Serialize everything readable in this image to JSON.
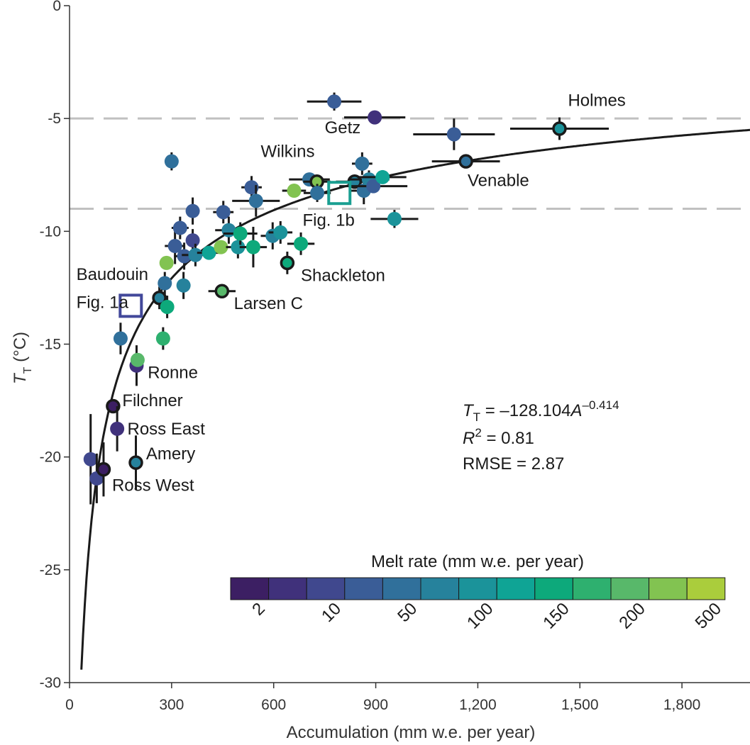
{
  "chart_data": {
    "type": "scatter",
    "xlabel": "Accumulation (mm w.e. per year)",
    "ylabel_main": "T",
    "ylabel_sub": "T",
    "ylabel_unit": " (°C)",
    "xlim": [
      0,
      2000
    ],
    "ylim": [
      -30,
      0
    ],
    "xticks": [
      0,
      300,
      600,
      900,
      1200,
      1500,
      1800
    ],
    "xtick_labels": [
      "0",
      "300",
      "600",
      "900",
      "1,200",
      "1,500",
      "1,800"
    ],
    "yticks": [
      0,
      -5,
      -10,
      -15,
      -20,
      -25,
      -30
    ],
    "ytick_labels": [
      "0",
      "-5",
      "-10",
      "-15",
      "-20",
      "-25",
      "-30"
    ],
    "reference_lines_y": [
      -5,
      -9
    ],
    "fit": {
      "coefficient": -128.104,
      "exponent": -0.414,
      "equation_parts": {
        "T": "T",
        "sub": "T",
        "mid": " = –128.104",
        "A": "A",
        "sup": "–0.414"
      },
      "r2_label": "R",
      "r2_sup": "2",
      "r2_value": " = 0.81",
      "rmse": "RMSE = 2.87"
    },
    "colorbar": {
      "title": "Melt rate (mm w.e. per year)",
      "colors": [
        "#3c1f63",
        "#40317b",
        "#40488e",
        "#3a5d97",
        "#30709b",
        "#26829c",
        "#1b939a",
        "#0fa495",
        "#0da97b",
        "#2eb06f",
        "#58b86a",
        "#82c351",
        "#aacd3c"
      ],
      "labels": [
        "2",
        "10",
        "50",
        "100",
        "150",
        "200",
        "500"
      ]
    },
    "points": [
      {
        "x": 62,
        "y": -20.1,
        "c": 2,
        "ex": 0,
        "ey": 2
      },
      {
        "x": 80,
        "y": -20.95,
        "c": 2,
        "ex": 0,
        "ey": 1.1
      },
      {
        "x": 100,
        "y": -20.55,
        "c": 0,
        "ex": 0,
        "ey": 1.2,
        "ring": true
      },
      {
        "x": 128,
        "y": -17.75,
        "c": 0,
        "ex": 0,
        "ey": 0.3,
        "ring": true
      },
      {
        "x": 140,
        "y": -18.75,
        "c": 1,
        "ex": 0,
        "ey": 1
      },
      {
        "x": 150,
        "y": -14.75,
        "c": 4,
        "ex": 0,
        "ey": 0.7
      },
      {
        "x": 195,
        "y": -20.25,
        "c": 5,
        "ex": 0,
        "ey": 1.2,
        "ring": true
      },
      {
        "x": 197,
        "y": -15.95,
        "c": 1,
        "ex": 0,
        "ey": 0.9
      },
      {
        "x": 200,
        "y": -15.7,
        "c": 10,
        "ex": 0,
        "ey": 0
      },
      {
        "x": 264,
        "y": -12.95,
        "c": 5,
        "ex": 0,
        "ey": 0.5,
        "ring": true
      },
      {
        "x": 275,
        "y": -14.75,
        "c": 9,
        "ex": 0,
        "ey": 0.5
      },
      {
        "x": 280,
        "y": -12.3,
        "c": 4,
        "ex": 0,
        "ey": 0.5
      },
      {
        "x": 285,
        "y": -11.4,
        "c": 11,
        "ex": 0,
        "ey": 0
      },
      {
        "x": 287,
        "y": -13.35,
        "c": 8,
        "ex": 0,
        "ey": 0.5
      },
      {
        "x": 300,
        "y": -6.9,
        "c": 4,
        "ex": 20,
        "ey": 0.4
      },
      {
        "x": 310,
        "y": -10.65,
        "c": 3,
        "ex": 30,
        "ey": 0.8
      },
      {
        "x": 325,
        "y": -9.85,
        "c": 3,
        "ex": 25,
        "ey": 0.5
      },
      {
        "x": 335,
        "y": -12.4,
        "c": 5,
        "ex": 0,
        "ey": 0.6
      },
      {
        "x": 337,
        "y": -11.1,
        "c": 3,
        "ex": 30,
        "ey": 0.6
      },
      {
        "x": 362,
        "y": -9.1,
        "c": 3,
        "ex": 20,
        "ey": 0.6
      },
      {
        "x": 362,
        "y": -10.4,
        "c": 2,
        "ex": 0,
        "ey": 0.5
      },
      {
        "x": 370,
        "y": -11.05,
        "c": 5,
        "ex": 40,
        "ey": 0.5
      },
      {
        "x": 410,
        "y": -10.95,
        "c": 7,
        "ex": 35,
        "ey": 0
      },
      {
        "x": 445,
        "y": -10.7,
        "c": 11,
        "ex": 0,
        "ey": 0
      },
      {
        "x": 452,
        "y": -9.15,
        "c": 3,
        "ex": 30,
        "ey": 0.5
      },
      {
        "x": 448,
        "y": -12.65,
        "c": 10,
        "ex": 40,
        "ey": 0,
        "ring": true
      },
      {
        "x": 468,
        "y": -9.95,
        "c": 5,
        "ex": 40,
        "ey": 0.6
      },
      {
        "x": 495,
        "y": -10.7,
        "c": 6,
        "ex": 35,
        "ey": 0.5
      },
      {
        "x": 502,
        "y": -10.1,
        "c": 8,
        "ex": 50,
        "ey": 0.5
      },
      {
        "x": 535,
        "y": -8.05,
        "c": 3,
        "ex": 30,
        "ey": 0.5
      },
      {
        "x": 548,
        "y": -8.65,
        "c": 4,
        "ex": 70,
        "ey": 0.7
      },
      {
        "x": 540,
        "y": -10.7,
        "c": 8,
        "ex": 40,
        "ey": 0.9
      },
      {
        "x": 597,
        "y": -10.2,
        "c": 5,
        "ex": 35,
        "ey": 0.6
      },
      {
        "x": 620,
        "y": -10.05,
        "c": 6,
        "ex": 35,
        "ey": 0.5
      },
      {
        "x": 640,
        "y": -11.4,
        "c": 8,
        "ex": 0,
        "ey": 0.5,
        "ring": true
      },
      {
        "x": 660,
        "y": -8.2,
        "c": 11,
        "ex": 35,
        "ey": 0
      },
      {
        "x": 680,
        "y": -10.55,
        "c": 8,
        "ex": 40,
        "ey": 0.5
      },
      {
        "x": 705,
        "y": -7.7,
        "c": 4,
        "ex": 60,
        "ey": 0.3
      },
      {
        "x": 727,
        "y": -7.8,
        "c": 11,
        "ex": 40,
        "ey": 0.3,
        "ring": true
      },
      {
        "x": 728,
        "y": -8.3,
        "c": 4,
        "ex": 40,
        "ey": 0.4
      },
      {
        "x": 778,
        "y": -4.25,
        "c": 3,
        "ex": 80,
        "ey": 0.4
      },
      {
        "x": 838,
        "y": -7.8,
        "c": 5,
        "ex": 55,
        "ey": 0.3,
        "ring": true
      },
      {
        "x": 860,
        "y": -7.0,
        "c": 4,
        "ex": 30,
        "ey": 0.5
      },
      {
        "x": 865,
        "y": -8.2,
        "c": 4,
        "ex": 40,
        "ey": 0.6
      },
      {
        "x": 880,
        "y": -7.7,
        "c": 5,
        "ex": 60,
        "ey": 0.4
      },
      {
        "x": 893,
        "y": -8.0,
        "c": 3,
        "ex": 100,
        "ey": 0
      },
      {
        "x": 897,
        "y": -4.95,
        "c": 1,
        "ex": 90,
        "ey": 0
      },
      {
        "x": 920,
        "y": -7.6,
        "c": 7,
        "ex": 70,
        "ey": 0.3
      },
      {
        "x": 955,
        "y": -9.45,
        "c": 6,
        "ex": 70,
        "ey": 0.4
      },
      {
        "x": 1130,
        "y": -5.7,
        "c": 3,
        "ex": 120,
        "ey": 0.7
      },
      {
        "x": 1165,
        "y": -6.9,
        "c": 4,
        "ex": 100,
        "ey": 0,
        "ring": true
      },
      {
        "x": 1440,
        "y": -5.45,
        "c": 6,
        "ex": 145,
        "ey": 0.5,
        "ring": true
      }
    ],
    "squares": [
      {
        "x": 180,
        "y": -13.3,
        "color": "#42489a",
        "label": "Fig. 1a"
      },
      {
        "x": 793,
        "y": -8.3,
        "color": "#1a9f92",
        "label": "Fig. 1b"
      }
    ],
    "annotations": [
      {
        "text": "Holmes",
        "x": 1465,
        "y": -4.45
      },
      {
        "text": "Getz",
        "x": 750,
        "y": -5.65
      },
      {
        "text": "Wilkins",
        "x": 562,
        "y": -6.7
      },
      {
        "text": "Venable",
        "x": 1170,
        "y": -8.0
      },
      {
        "text": "Fig. 1b",
        "x": 685,
        "y": -9.75
      },
      {
        "text": "Shackleton",
        "x": 680,
        "y": -12.2
      },
      {
        "text": "Baudouin",
        "x": 20,
        "y": -12.15
      },
      {
        "text": "Fig. 1a",
        "x": 20,
        "y": -13.4
      },
      {
        "text": "Larsen C",
        "x": 483,
        "y": -13.45
      },
      {
        "text": "Ronne",
        "x": 230,
        "y": -16.5
      },
      {
        "text": "Filchner",
        "x": 155,
        "y": -17.75
      },
      {
        "text": "Ross East",
        "x": 170,
        "y": -19.0
      },
      {
        "text": "Amery",
        "x": 225,
        "y": -20.1
      },
      {
        "text": "Ross West",
        "x": 125,
        "y": -21.5
      }
    ]
  }
}
